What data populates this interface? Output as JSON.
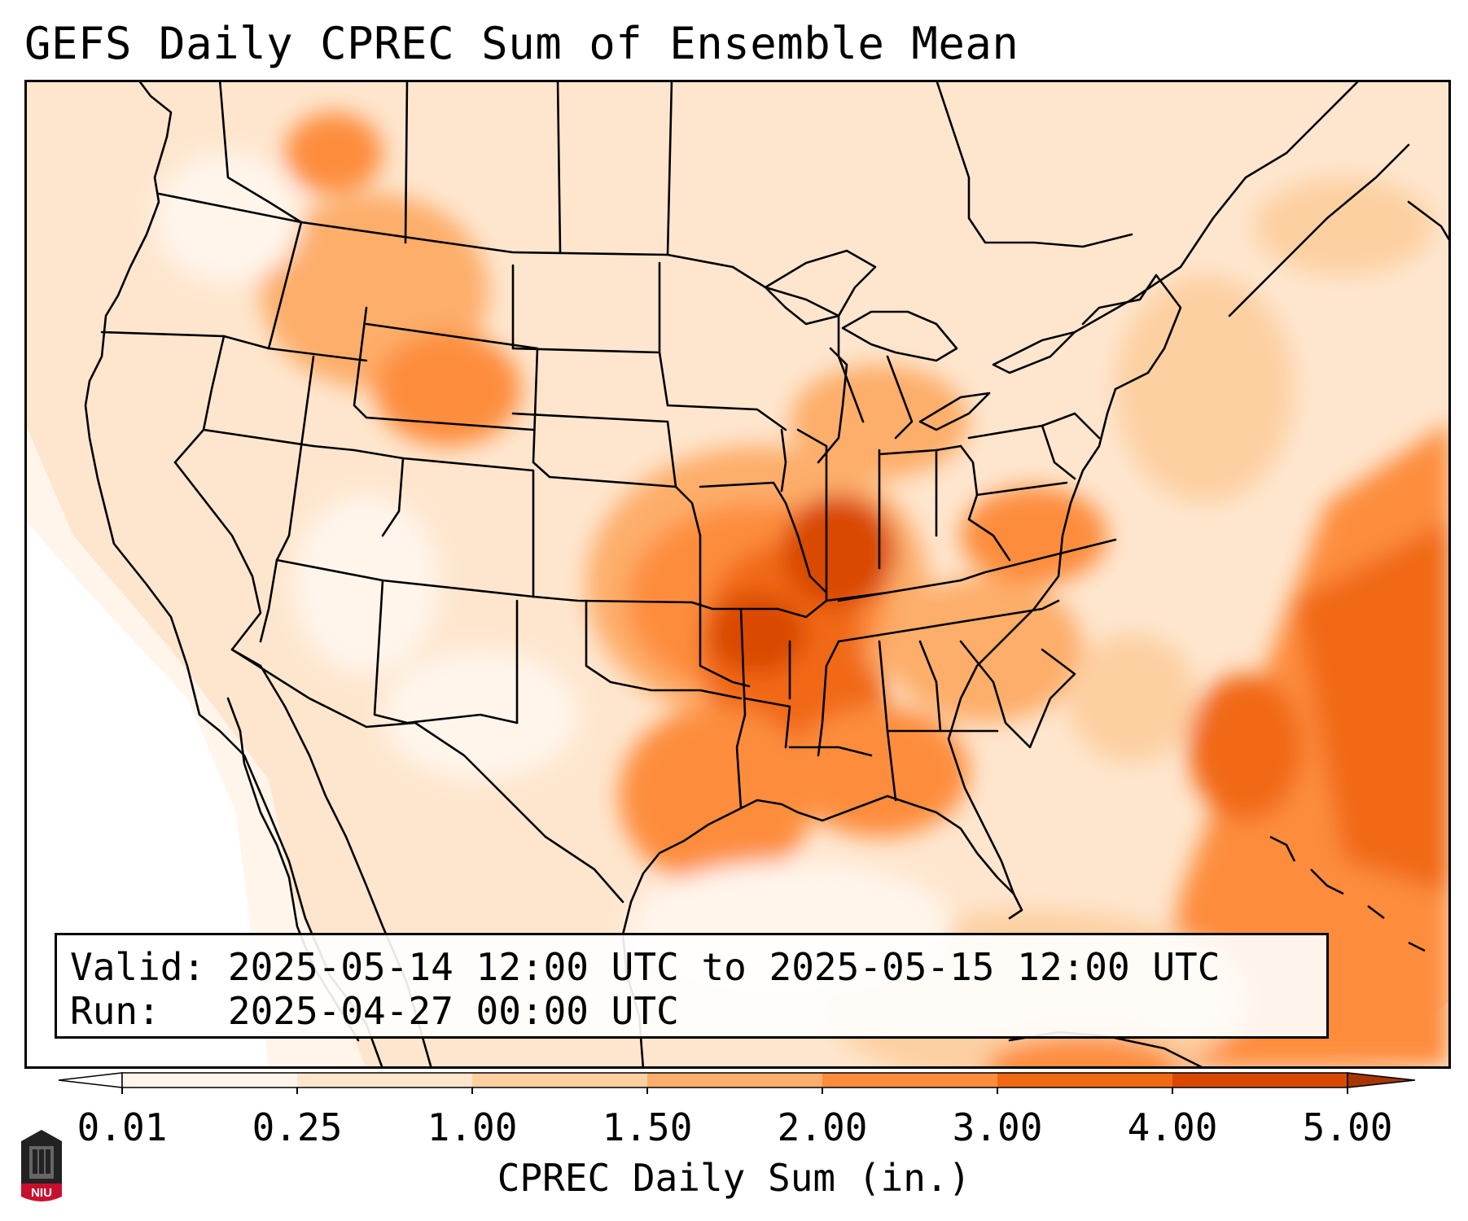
{
  "title": "GEFS Daily CPREC Sum of Ensemble Mean",
  "info": {
    "valid_label": "Valid:",
    "valid_value": "2025-05-14 12:00 UTC to 2025-05-15 12:00 UTC",
    "run_label": "Run:",
    "run_value": "2025-04-27 00:00 UTC"
  },
  "colorbar": {
    "label": "CPREC Daily Sum (in.)",
    "ticks": [
      "0.01",
      "0.25",
      "1.00",
      "1.50",
      "2.00",
      "3.00",
      "4.00",
      "5.00"
    ],
    "colors": [
      "#fff5eb",
      "#fee6ce",
      "#fdd0a2",
      "#fdae6b",
      "#fd8d3c",
      "#f16913",
      "#d94801",
      "#a63603"
    ],
    "under_color": "#ffffff",
    "over_color": "#7f2704"
  },
  "logo": {
    "text": "NIU",
    "color": "#c8102e"
  }
}
